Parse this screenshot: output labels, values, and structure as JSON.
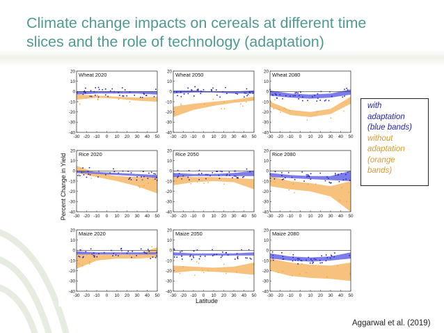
{
  "title_lines": [
    "Climate change impacts on cereals at different time",
    "slices and the role of technology (adaptation)"
  ],
  "colors": {
    "title": "#4f9a93",
    "blue": "#2323b8",
    "orange": "#f0a030",
    "orange_band": "#f6b766",
    "blue_band": "#6e6ee8"
  },
  "legend": {
    "line1": "with",
    "line2": "adaptation",
    "line3": "(blue bands)",
    "line4": "without",
    "line5": "adaptation",
    "line6": "(orange",
    "line7": "bands)"
  },
  "citation": "Aggarwal et al. (2019)",
  "figure": {
    "ylabel": "Percent Change in Yield",
    "xlabel": "Latitude",
    "y_ticks": [
      "20",
      "10",
      "0",
      "-10",
      "-20",
      "-30",
      "-40"
    ],
    "x_ticks": [
      "-30",
      "-20",
      "-10",
      "0",
      "10",
      "20",
      "30",
      "40",
      "50"
    ],
    "panels": [
      {
        "label": "Wheat 2020"
      },
      {
        "label": "Wheat 2050"
      },
      {
        "label": "Wheat 2080"
      },
      {
        "label": "Rice 2020"
      },
      {
        "label": "Rice 2050"
      },
      {
        "label": "Rice 2080"
      },
      {
        "label": "Maize 2020"
      },
      {
        "label": "Maize 2050"
      },
      {
        "label": "Maize 2080"
      }
    ]
  },
  "chart_data": {
    "type": "scatter",
    "xlim": [
      -30,
      50
    ],
    "ylim": [
      -40,
      20
    ],
    "panels": [
      {
        "crop": "Wheat",
        "year": "2020",
        "orange": [
          [
            -30,
            -3,
            -8
          ],
          [
            -10,
            -4,
            -6
          ],
          [
            10,
            -5,
            -7
          ],
          [
            30,
            -6,
            -9
          ],
          [
            50,
            -5,
            -10
          ]
        ],
        "blue": [
          [
            -30,
            0,
            -3
          ],
          [
            -10,
            0,
            -2
          ],
          [
            10,
            0,
            -2
          ],
          [
            30,
            0,
            -2
          ],
          [
            50,
            0,
            -3
          ]
        ]
      },
      {
        "crop": "Wheat",
        "year": "2050",
        "orange": [
          [
            -30,
            -15,
            -25
          ],
          [
            -10,
            -12,
            -18
          ],
          [
            10,
            -10,
            -14
          ],
          [
            30,
            -8,
            -11
          ],
          [
            50,
            -5,
            -9
          ]
        ],
        "blue": [
          [
            -30,
            1,
            -2
          ],
          [
            -10,
            1,
            -1
          ],
          [
            10,
            0,
            -1
          ],
          [
            30,
            0,
            -2
          ],
          [
            50,
            1,
            -2
          ]
        ]
      },
      {
        "crop": "Wheat",
        "year": "2080",
        "orange": [
          [
            -30,
            -10,
            -15
          ],
          [
            -10,
            -18,
            -23
          ],
          [
            10,
            -20,
            -25
          ],
          [
            30,
            -17,
            -22
          ],
          [
            50,
            -5,
            -12
          ]
        ],
        "blue": [
          [
            -30,
            1,
            -4
          ],
          [
            -10,
            -2,
            -6
          ],
          [
            10,
            -3,
            -7
          ],
          [
            30,
            -2,
            -6
          ],
          [
            50,
            2,
            -3
          ]
        ]
      },
      {
        "crop": "Rice",
        "year": "2020",
        "orange": [
          [
            -30,
            5,
            -2
          ],
          [
            -10,
            -2,
            -6
          ],
          [
            10,
            -5,
            -10
          ],
          [
            30,
            -6,
            -15
          ],
          [
            50,
            -5,
            -22
          ]
        ],
        "blue": [
          [
            -30,
            0,
            -2
          ],
          [
            -10,
            -1,
            -3
          ],
          [
            10,
            -2,
            -4
          ],
          [
            30,
            -3,
            -5
          ],
          [
            50,
            -4,
            -7
          ]
        ]
      },
      {
        "crop": "Rice",
        "year": "2050",
        "orange": [
          [
            -30,
            -5,
            -14
          ],
          [
            -10,
            -6,
            -11
          ],
          [
            10,
            -6,
            -10
          ],
          [
            30,
            -7,
            -11
          ],
          [
            50,
            -8,
            -18
          ]
        ],
        "blue": [
          [
            -30,
            -2,
            -6
          ],
          [
            -10,
            -3,
            -5
          ],
          [
            10,
            -3,
            -5
          ],
          [
            30,
            -2,
            -5
          ],
          [
            50,
            0,
            -5
          ]
        ]
      },
      {
        "crop": "Rice",
        "year": "2080",
        "orange": [
          [
            -30,
            -5,
            -15
          ],
          [
            -10,
            -10,
            -18
          ],
          [
            10,
            -12,
            -20
          ],
          [
            30,
            -15,
            -25
          ],
          [
            50,
            -10,
            -40
          ]
        ],
        "blue": [
          [
            -30,
            -2,
            -6
          ],
          [
            -10,
            -4,
            -7
          ],
          [
            10,
            -5,
            -8
          ],
          [
            30,
            -5,
            -9
          ],
          [
            50,
            0,
            -10
          ]
        ]
      },
      {
        "crop": "Maize",
        "year": "2020",
        "orange": [
          [
            -30,
            -2,
            -18
          ],
          [
            -10,
            -4,
            -10
          ],
          [
            10,
            -4,
            -8
          ],
          [
            30,
            -4,
            -8
          ],
          [
            50,
            3,
            -7
          ]
        ],
        "blue": [
          [
            -30,
            -1,
            -4
          ],
          [
            -10,
            -2,
            -4
          ],
          [
            10,
            -2,
            -4
          ],
          [
            30,
            -2,
            -4
          ],
          [
            50,
            -2,
            -4
          ]
        ]
      },
      {
        "crop": "Maize",
        "year": "2050",
        "orange": [
          [
            -30,
            -15,
            -22
          ],
          [
            -10,
            -16,
            -20
          ],
          [
            10,
            -17,
            -21
          ],
          [
            30,
            -16,
            -22
          ],
          [
            50,
            -12,
            -24
          ]
        ],
        "blue": [
          [
            -30,
            -2,
            -5
          ],
          [
            -10,
            -3,
            -5
          ],
          [
            10,
            -3,
            -5
          ],
          [
            30,
            -3,
            -5
          ],
          [
            50,
            -2,
            -5
          ]
        ]
      },
      {
        "crop": "Maize",
        "year": "2080",
        "orange": [
          [
            -30,
            -8,
            -20
          ],
          [
            -10,
            -12,
            -25
          ],
          [
            10,
            -14,
            -27
          ],
          [
            30,
            -15,
            -28
          ],
          [
            50,
            -12,
            -30
          ]
        ],
        "blue": [
          [
            -30,
            -3,
            -8
          ],
          [
            -10,
            -6,
            -10
          ],
          [
            10,
            -7,
            -11
          ],
          [
            30,
            -6,
            -10
          ],
          [
            50,
            -2,
            -8
          ]
        ]
      }
    ]
  }
}
